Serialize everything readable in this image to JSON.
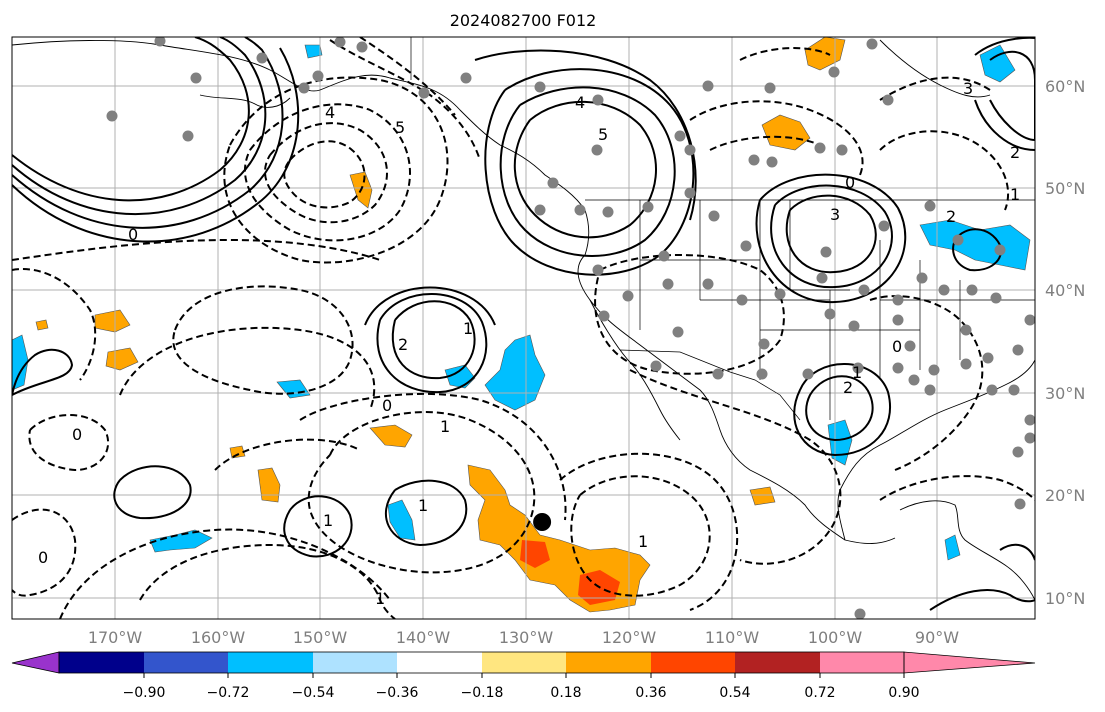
{
  "title": "2024082700 F012",
  "lon_labels": [
    "170°W",
    "160°W",
    "150°W",
    "140°W",
    "130°W",
    "120°W",
    "110°W",
    "100°W",
    "90°W"
  ],
  "lat_labels": [
    "10°N",
    "20°N",
    "30°N",
    "40°N",
    "50°N",
    "60°N"
  ],
  "contour_labels": [
    "0",
    "1",
    "2",
    "3",
    "4",
    "5",
    "1",
    "2",
    "0",
    "1",
    "0",
    "1",
    "1",
    "0",
    "1",
    "1",
    "2",
    "3",
    "1",
    "0",
    "2",
    "0",
    "4",
    "5"
  ],
  "colorbar": {
    "tick_labels": [
      "−0.90",
      "−0.72",
      "−0.54",
      "−0.36",
      "−0.18",
      "0.18",
      "0.36",
      "0.54",
      "0.72",
      "0.90"
    ],
    "colors": [
      "#9933cc",
      "#00008b",
      "#3355cc",
      "#00bfff",
      "#aee2ff",
      "#ffffff",
      "#ffe680",
      "#ffa500",
      "#ff4500",
      "#b22222",
      "#ff88aa"
    ]
  },
  "map_data": {
    "extent": {
      "lon_min": -180,
      "lon_max": -81,
      "lat_min": 8,
      "lat_max": 65
    },
    "storm_marker": {
      "lon": -128.7,
      "lat": 17.5
    },
    "station_count": 80
  }
}
